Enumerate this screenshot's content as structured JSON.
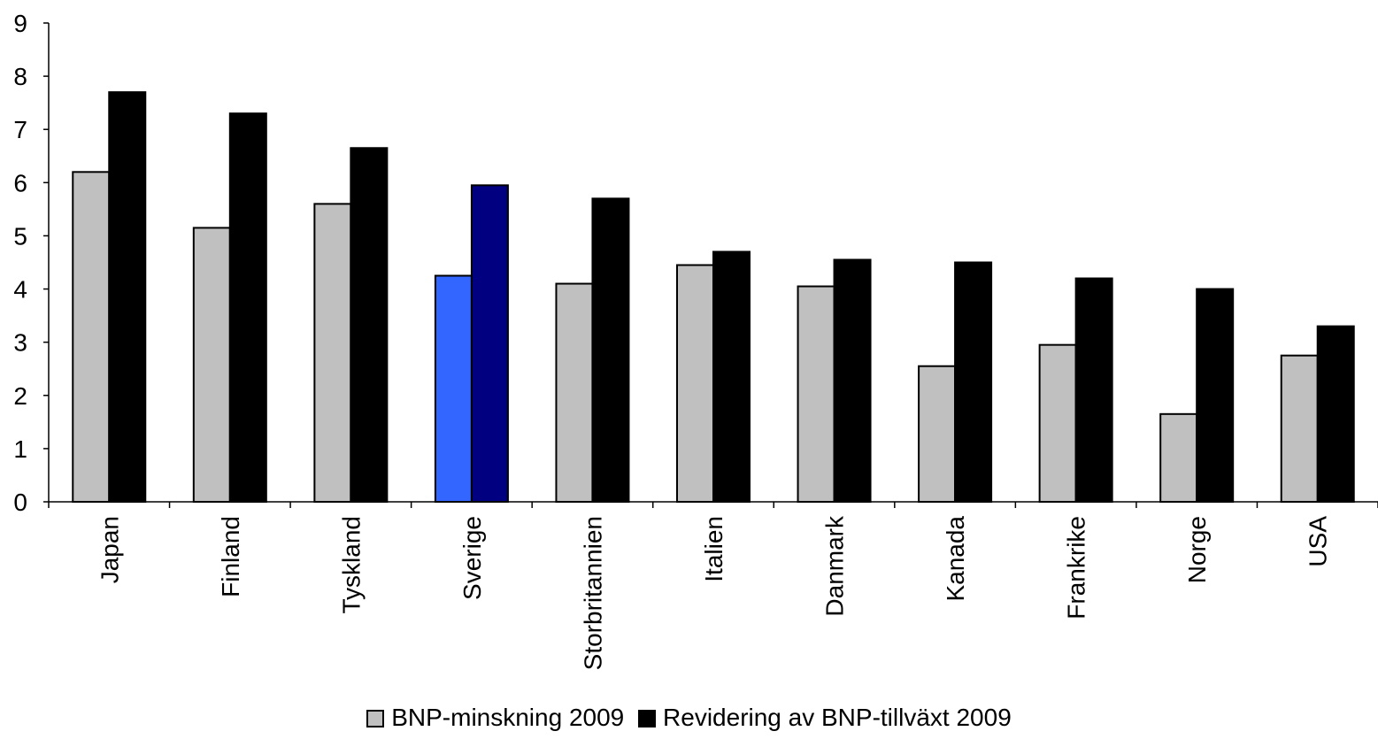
{
  "chart_data": {
    "type": "bar",
    "categories": [
      "Japan",
      "Finland",
      "Tyskland",
      "Sverige",
      "Storbritannien",
      "Italien",
      "Danmark",
      "Kanada",
      "Frankrike",
      "Norge",
      "USA"
    ],
    "series": [
      {
        "name": "BNP-minskning 2009",
        "color": "#c0c0c0",
        "values": [
          6.2,
          5.15,
          5.6,
          4.25,
          4.1,
          4.45,
          4.05,
          2.55,
          2.95,
          1.65,
          2.75
        ]
      },
      {
        "name": "Revidering av BNP-tillväxt 2009",
        "color": "#000000",
        "values": [
          7.7,
          7.3,
          6.65,
          5.95,
          5.7,
          4.7,
          4.55,
          4.5,
          4.2,
          4.0,
          3.3
        ]
      }
    ],
    "highlight": {
      "category": "Sverige",
      "colors": [
        "#3366ff",
        "#000080"
      ]
    },
    "yticks": [
      "0",
      "1",
      "2",
      "3",
      "4",
      "5",
      "6",
      "7",
      "8",
      "9"
    ],
    "ylim": [
      0,
      9
    ],
    "grid": false,
    "legend_position": "bottom"
  }
}
